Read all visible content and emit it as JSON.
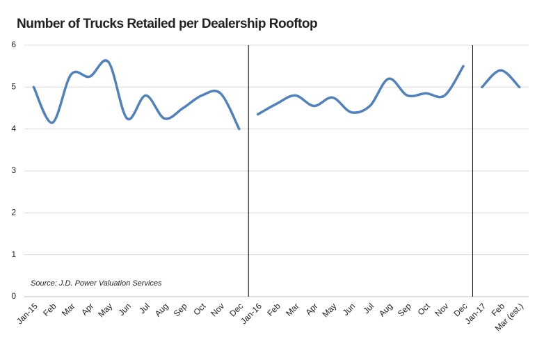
{
  "chart_data": {
    "type": "line",
    "title": "Number of Trucks Retailed per Dealership Rooftop",
    "annotation": "Source: J.D. Power Valuation Services",
    "categories": [
      "Jan-15",
      "Feb",
      "Mar",
      "Apr",
      "May",
      "Jun",
      "Jul",
      "Aug",
      "Sep",
      "Oct",
      "Nov",
      "Dec",
      "Jan-16",
      "Feb",
      "Mar",
      "Apr",
      "May",
      "Jun",
      "Jul",
      "Aug",
      "Sep",
      "Oct",
      "Nov",
      "Dec",
      "Jan-17",
      "Feb",
      "Mar (est.)"
    ],
    "series": [
      {
        "color": "#4f81bd",
        "values": [
          5.0,
          4.15,
          5.3,
          5.25,
          5.6,
          4.25,
          4.8,
          4.25,
          4.5,
          4.8,
          4.85,
          4.0,
          null,
          null,
          null,
          null,
          null,
          null,
          null,
          null,
          null,
          null,
          null,
          null,
          null,
          null,
          null
        ]
      },
      {
        "color": "#4f81bd",
        "values": [
          null,
          null,
          null,
          null,
          null,
          null,
          null,
          null,
          null,
          null,
          null,
          null,
          4.35,
          4.6,
          4.8,
          4.55,
          4.75,
          4.4,
          4.55,
          5.2,
          4.8,
          4.85,
          4.8,
          5.5,
          null,
          null,
          null
        ]
      },
      {
        "color": "#4f81bd",
        "values": [
          null,
          null,
          null,
          null,
          null,
          null,
          null,
          null,
          null,
          null,
          null,
          null,
          null,
          null,
          null,
          null,
          null,
          null,
          null,
          null,
          null,
          null,
          null,
          null,
          5.0,
          5.4,
          5.0
        ]
      }
    ],
    "ylim": [
      0,
      6
    ],
    "yticks": [
      0,
      1,
      2,
      3,
      4,
      5,
      6
    ],
    "grid": true
  }
}
